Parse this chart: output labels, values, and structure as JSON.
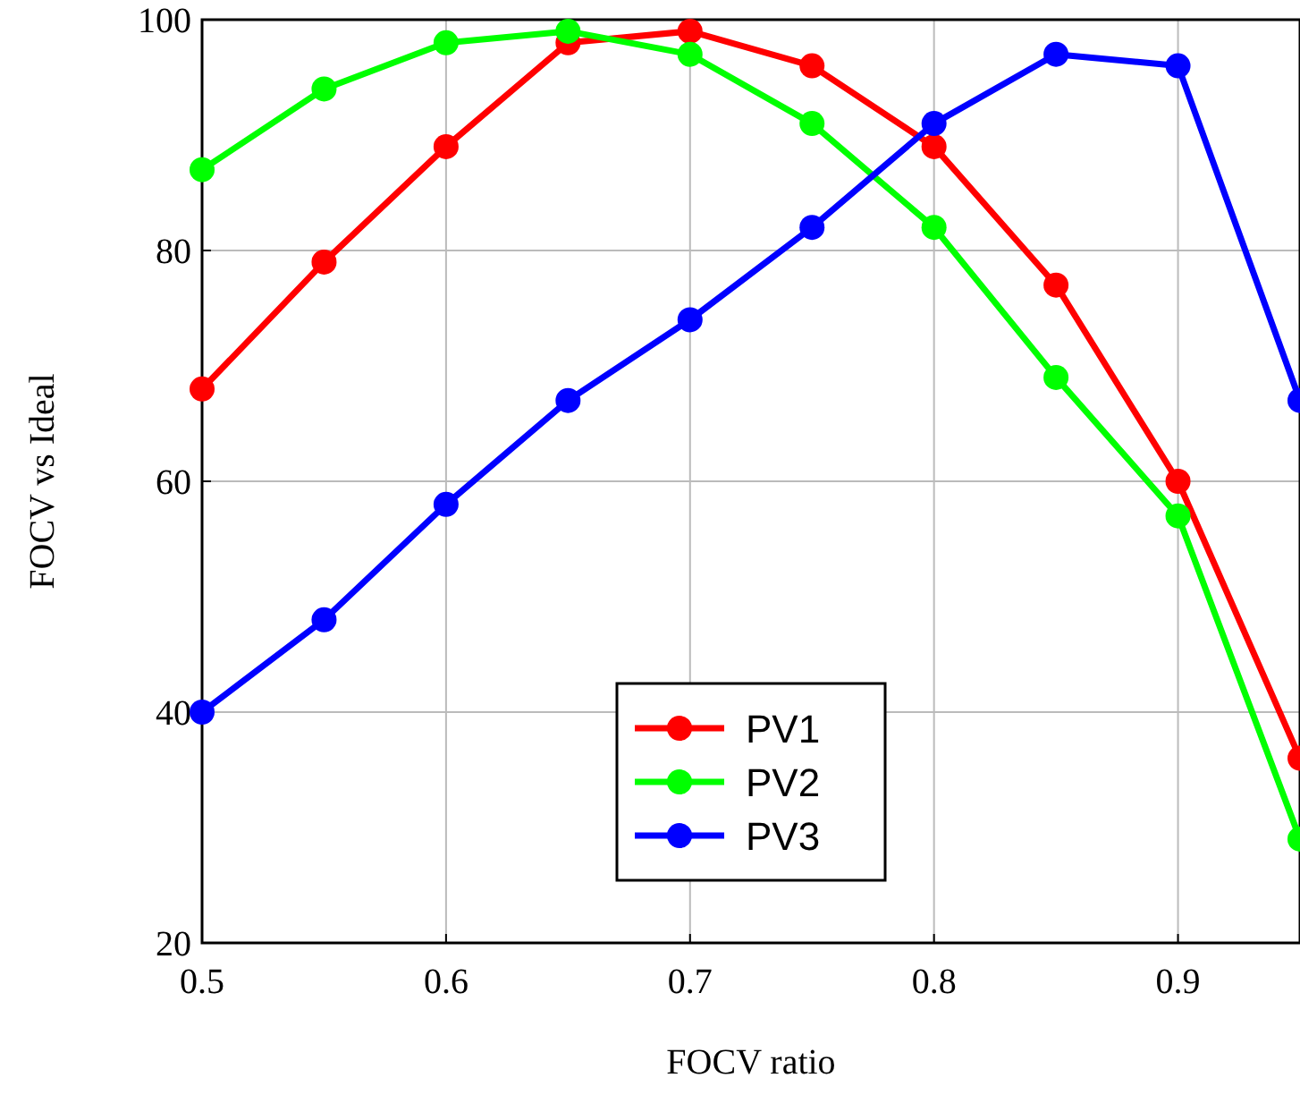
{
  "chart_data": {
    "type": "line",
    "xlabel": "FOCV ratio",
    "ylabel": "FOCV vs Ideal",
    "x": [
      0.5,
      0.55,
      0.6,
      0.65,
      0.7,
      0.75,
      0.8,
      0.85,
      0.9,
      0.95
    ],
    "xlim": [
      0.5,
      0.95
    ],
    "xticks": [
      0.5,
      0.6,
      0.7,
      0.8,
      0.9
    ],
    "ylim": [
      20,
      100
    ],
    "yticks": [
      20,
      40,
      60,
      80,
      100
    ],
    "grid": true,
    "legend": "bottom",
    "marker": "circle",
    "line_style": "solid",
    "series": [
      {
        "name": "PV1",
        "color": "#ff0000",
        "values": [
          68,
          79,
          89,
          98,
          99,
          96,
          89,
          77,
          60,
          36
        ]
      },
      {
        "name": "PV2",
        "color": "#00ff00",
        "values": [
          87,
          94,
          98,
          99,
          97,
          91,
          82,
          69,
          57,
          29
        ]
      },
      {
        "name": "PV3",
        "color": "#0000ff",
        "values": [
          40,
          48,
          58,
          67,
          74,
          82,
          91,
          97,
          96,
          67
        ]
      }
    ]
  }
}
